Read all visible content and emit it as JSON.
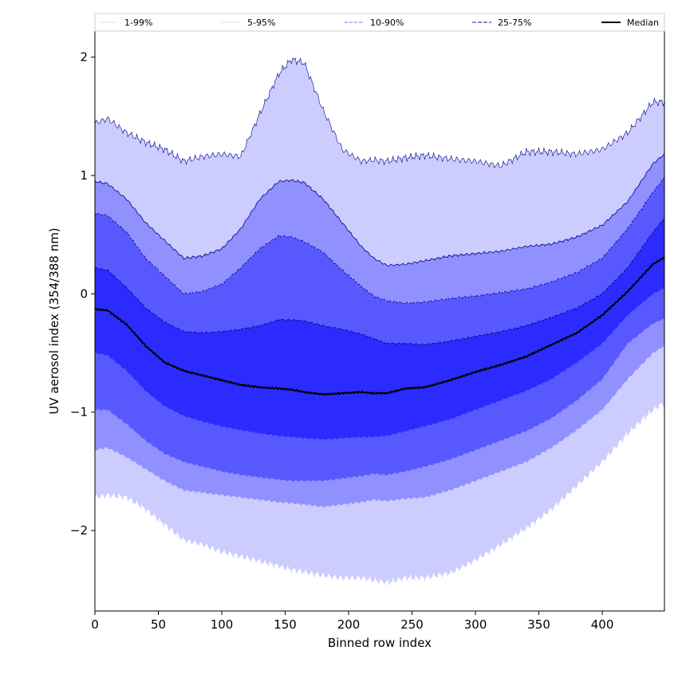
{
  "chart_data": {
    "type": "area",
    "xlabel": "Binned row index",
    "ylabel": "UV aerosol index (354/388 nm)",
    "xlim": [
      0,
      449
    ],
    "ylim": [
      -2.68,
      2.22
    ],
    "xticks": [
      0,
      50,
      100,
      150,
      200,
      250,
      300,
      350,
      400
    ],
    "yticks": [
      -2,
      -1,
      0,
      1,
      2
    ],
    "ytick_labels": [
      "−2",
      "−1",
      "0",
      "1",
      "2"
    ],
    "grid": false,
    "legend_position": "top",
    "legend": [
      "1-99%",
      "5-95%",
      "10-90%",
      "25-75%",
      "Median"
    ],
    "colors": {
      "band_1_99": "#ccccff",
      "band_5_95": "#9090ff",
      "band_10_90": "#5858ff",
      "band_25_75": "#2b2bff",
      "median": "#000000",
      "edge": "#00008b"
    },
    "knots_x": [
      0,
      10,
      25,
      40,
      55,
      70,
      85,
      100,
      115,
      130,
      145,
      155,
      165,
      180,
      195,
      210,
      220,
      230,
      245,
      260,
      280,
      300,
      320,
      340,
      360,
      380,
      400,
      420,
      440,
      449
    ],
    "series": [
      {
        "name": "1-99%",
        "low": [
          -1.72,
          -1.7,
          -1.72,
          -1.82,
          -1.95,
          -2.08,
          -2.12,
          -2.18,
          -2.22,
          -2.26,
          -2.3,
          -2.33,
          -2.35,
          -2.38,
          -2.4,
          -2.4,
          -2.42,
          -2.44,
          -2.4,
          -2.4,
          -2.36,
          -2.25,
          -2.12,
          -1.98,
          -1.82,
          -1.62,
          -1.42,
          -1.18,
          -0.98,
          -0.92
        ],
        "high": [
          1.44,
          1.48,
          1.36,
          1.28,
          1.22,
          1.12,
          1.16,
          1.18,
          1.16,
          1.52,
          1.86,
          1.98,
          1.95,
          1.55,
          1.22,
          1.12,
          1.13,
          1.12,
          1.15,
          1.17,
          1.14,
          1.12,
          1.08,
          1.2,
          1.2,
          1.18,
          1.22,
          1.36,
          1.62,
          1.62
        ]
      },
      {
        "name": "5-95%",
        "low": [
          -1.32,
          -1.3,
          -1.38,
          -1.48,
          -1.58,
          -1.66,
          -1.68,
          -1.7,
          -1.72,
          -1.74,
          -1.76,
          -1.77,
          -1.78,
          -1.8,
          -1.78,
          -1.76,
          -1.74,
          -1.75,
          -1.73,
          -1.72,
          -1.66,
          -1.58,
          -1.5,
          -1.42,
          -1.3,
          -1.15,
          -0.98,
          -0.72,
          -0.5,
          -0.44
        ],
        "high": [
          0.95,
          0.93,
          0.8,
          0.6,
          0.45,
          0.3,
          0.32,
          0.38,
          0.55,
          0.8,
          0.95,
          0.96,
          0.94,
          0.8,
          0.6,
          0.4,
          0.3,
          0.24,
          0.25,
          0.28,
          0.32,
          0.34,
          0.36,
          0.4,
          0.42,
          0.48,
          0.58,
          0.78,
          1.1,
          1.18
        ]
      },
      {
        "name": "10-90%",
        "low": [
          -0.98,
          -0.98,
          -1.1,
          -1.24,
          -1.35,
          -1.42,
          -1.46,
          -1.5,
          -1.53,
          -1.55,
          -1.57,
          -1.58,
          -1.58,
          -1.58,
          -1.56,
          -1.54,
          -1.52,
          -1.53,
          -1.5,
          -1.46,
          -1.4,
          -1.32,
          -1.24,
          -1.16,
          -1.05,
          -0.9,
          -0.72,
          -0.42,
          -0.25,
          -0.21
        ],
        "high": [
          0.68,
          0.66,
          0.52,
          0.3,
          0.15,
          0.0,
          0.02,
          0.08,
          0.22,
          0.38,
          0.49,
          0.48,
          0.44,
          0.35,
          0.2,
          0.06,
          -0.02,
          -0.06,
          -0.08,
          -0.07,
          -0.04,
          -0.02,
          0.01,
          0.04,
          0.1,
          0.18,
          0.3,
          0.55,
          0.86,
          0.98
        ]
      },
      {
        "name": "25-75%",
        "low": [
          -0.5,
          -0.52,
          -0.65,
          -0.82,
          -0.95,
          -1.03,
          -1.08,
          -1.12,
          -1.15,
          -1.18,
          -1.2,
          -1.21,
          -1.22,
          -1.23,
          -1.22,
          -1.21,
          -1.21,
          -1.2,
          -1.16,
          -1.12,
          -1.06,
          -0.98,
          -0.9,
          -0.82,
          -0.72,
          -0.58,
          -0.42,
          -0.18,
          0.0,
          0.05
        ],
        "high": [
          0.22,
          0.2,
          0.05,
          -0.12,
          -0.24,
          -0.32,
          -0.33,
          -0.32,
          -0.3,
          -0.27,
          -0.22,
          -0.22,
          -0.23,
          -0.27,
          -0.3,
          -0.34,
          -0.38,
          -0.42,
          -0.42,
          -0.43,
          -0.4,
          -0.36,
          -0.32,
          -0.27,
          -0.2,
          -0.12,
          0.0,
          0.22,
          0.52,
          0.64
        ]
      },
      {
        "name": "Median",
        "values": [
          -0.13,
          -0.14,
          -0.26,
          -0.44,
          -0.58,
          -0.65,
          -0.69,
          -0.73,
          -0.77,
          -0.79,
          -0.8,
          -0.81,
          -0.83,
          -0.85,
          -0.84,
          -0.83,
          -0.84,
          -0.84,
          -0.8,
          -0.79,
          -0.73,
          -0.66,
          -0.6,
          -0.53,
          -0.43,
          -0.33,
          -0.18,
          0.02,
          0.25,
          0.31
        ]
      }
    ]
  }
}
